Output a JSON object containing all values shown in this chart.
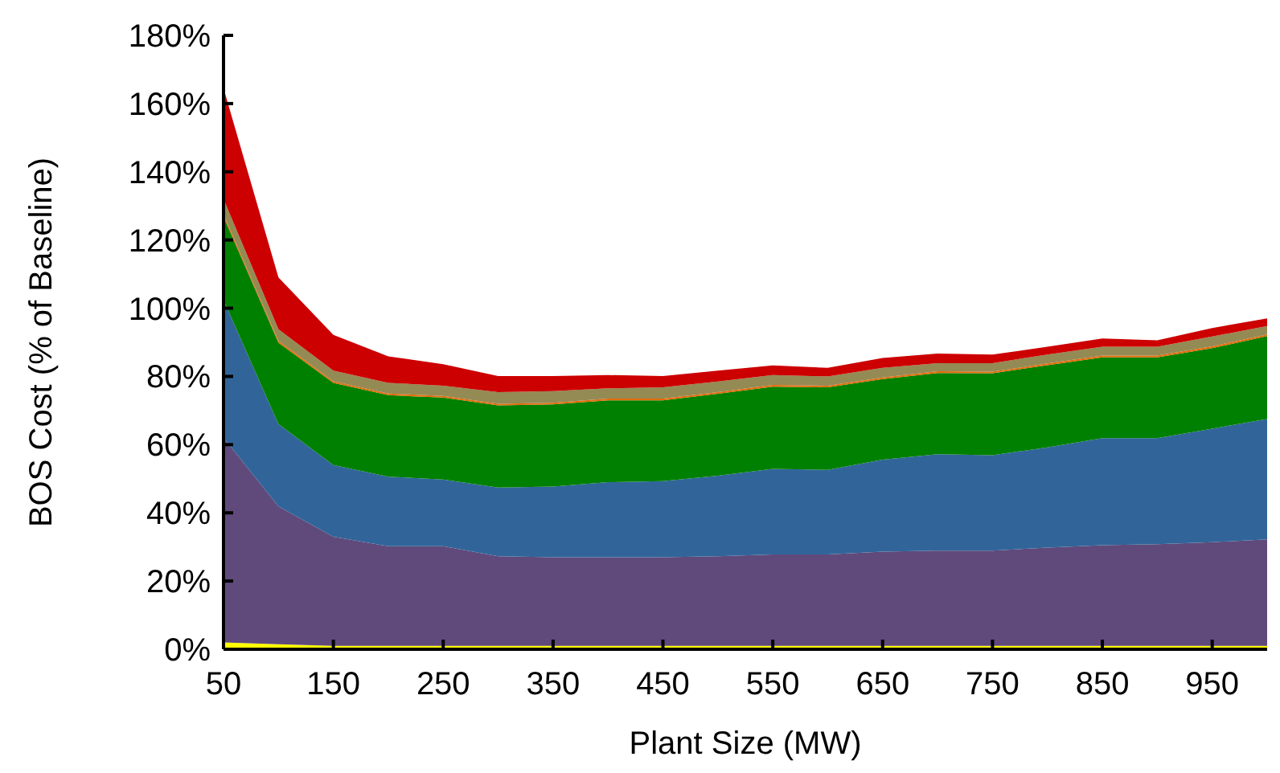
{
  "chart_data": {
    "type": "area",
    "stacked": true,
    "xlabel": "Plant Size (MW)",
    "ylabel": "BOS Cost (% of Baseline)",
    "x": [
      50,
      100,
      150,
      200,
      250,
      300,
      350,
      400,
      450,
      500,
      550,
      600,
      650,
      700,
      750,
      800,
      850,
      900,
      950,
      1000
    ],
    "xlim": [
      50,
      1000
    ],
    "xticks": [
      50,
      150,
      250,
      350,
      450,
      550,
      650,
      750,
      850,
      950
    ],
    "ylim": [
      0,
      180
    ],
    "yticks": [
      {
        "value": 0,
        "label": "0%"
      },
      {
        "value": 20,
        "label": "20%"
      },
      {
        "value": 40,
        "label": "40%"
      },
      {
        "value": 60,
        "label": "60%"
      },
      {
        "value": 80,
        "label": "80%"
      },
      {
        "value": 100,
        "label": "100%"
      },
      {
        "value": 120,
        "label": "120%"
      },
      {
        "value": 140,
        "label": "140%"
      },
      {
        "value": 160,
        "label": "160%"
      },
      {
        "value": 180,
        "label": "180%"
      }
    ],
    "grid": false,
    "series": [
      {
        "color": "#ffff00",
        "values": [
          2,
          1.5,
          1,
          1,
          1,
          1,
          1,
          1,
          1,
          1,
          1,
          1,
          1,
          1,
          1,
          1,
          1,
          1,
          1,
          1
        ]
      },
      {
        "color": "#604a7b",
        "values": [
          60,
          40.4,
          32,
          29.2,
          29.2,
          26.3,
          26,
          26,
          26,
          26.3,
          26.8,
          26.8,
          27.6,
          27.9,
          27.9,
          28.8,
          29.5,
          29.8,
          30.4,
          31.2
        ]
      },
      {
        "color": "#31659a",
        "values": [
          40.4,
          24.1,
          21,
          20.4,
          19.6,
          20.1,
          20.7,
          22,
          22.3,
          23.6,
          25.1,
          24.8,
          27,
          28.3,
          28,
          29.4,
          31.4,
          31.1,
          33.3,
          35.3
        ]
      },
      {
        "color": "#008000",
        "values": [
          24.4,
          23.9,
          24.1,
          23.9,
          24,
          24.1,
          24.1,
          24,
          23.7,
          24,
          24.1,
          24.2,
          23.6,
          23.8,
          24,
          24.1,
          23.7,
          23.7,
          23.6,
          24.3
        ]
      },
      {
        "color": "#e46c0a",
        "values": [
          0.7,
          0.6,
          0.5,
          0.5,
          0.5,
          0.5,
          0.5,
          0.5,
          0.5,
          0.5,
          0.5,
          0.5,
          0.5,
          0.5,
          0.5,
          0.5,
          0.5,
          0.5,
          0.5,
          0.5
        ]
      },
      {
        "color": "#948a54",
        "values": [
          4.5,
          3.3,
          3.1,
          3.1,
          3,
          3.4,
          3.4,
          3,
          3.3,
          3.1,
          2.9,
          2.7,
          2.8,
          2.4,
          2.5,
          2.6,
          2.6,
          2.6,
          2.9,
          2.5
        ]
      },
      {
        "color": "#cc0000",
        "values": [
          32.5,
          15.2,
          10.5,
          7.8,
          6.3,
          4.7,
          4.4,
          3.9,
          3.3,
          3.2,
          2.8,
          2.5,
          2.9,
          2.8,
          2.5,
          2.3,
          2.4,
          1.9,
          2.5,
          2.2
        ]
      }
    ]
  }
}
